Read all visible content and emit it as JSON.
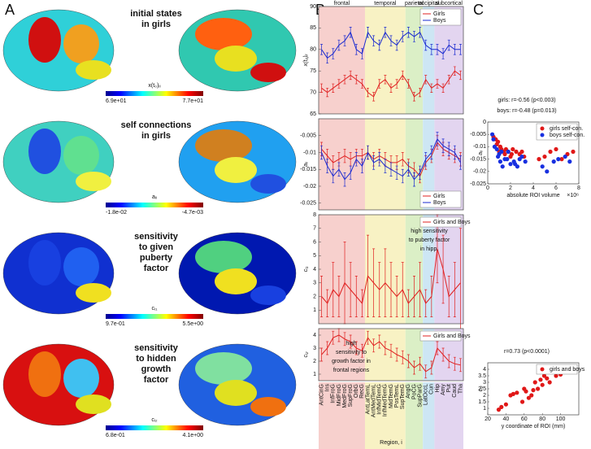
{
  "panel_labels": [
    "A",
    "B",
    "C"
  ],
  "brain_panels": [
    {
      "lines": [
        "initial states",
        "in girls"
      ],
      "colorbar_label": "x(t₀)ᵢᵢ",
      "colorbar_min": "6.9e+01",
      "colorbar_max": "7.7e+01"
    },
    {
      "lines": [
        "self connections",
        "in girls"
      ],
      "colorbar_label": "aᵢᵢ",
      "colorbar_min": "-1.8e-02",
      "colorbar_max": "-4.7e-03"
    },
    {
      "lines": [
        "sensitivity",
        "to given",
        "puberty",
        "factor"
      ],
      "colorbar_label": "cᵢ₁",
      "colorbar_min": "9.7e-01",
      "colorbar_max": "5.5e+00"
    },
    {
      "lines": [
        "sensitivity",
        "to hidden",
        "growth",
        "factor"
      ],
      "colorbar_label": "cᵢ₂",
      "colorbar_min": "6.8e-01",
      "colorbar_max": "4.1e+00"
    }
  ],
  "region_axis": {
    "label": "Region, i",
    "categories": [
      "AntCinG",
      "Ins",
      "InfFroG",
      "MidFroG",
      "MedFroG",
      "SupFroG",
      "OrbG",
      "RecG",
      "AntLatTemL",
      "AntMedTemL",
      "InfMidTemG",
      "InfMedTemG",
      "MidTemG",
      "PosTemL",
      "SupTemG",
      "AngG",
      "PoCG",
      "SupParG",
      "LatOccL",
      "Cun",
      "Hip",
      "Amy",
      "Put",
      "Caud",
      "Tha"
    ],
    "groups": [
      {
        "name": "frontal",
        "count": 8,
        "color": "#f7d0cd"
      },
      {
        "name": "temporal",
        "count": 7,
        "color": "#f8f2c4"
      },
      {
        "name": "parietal",
        "count": 3,
        "color": "#dbefc6"
      },
      {
        "name": "occipital",
        "count": 2,
        "color": "#cde6f4"
      },
      {
        "name": "subcortical",
        "count": 5,
        "color": "#e3d5f0"
      }
    ]
  },
  "chart_data": [
    {
      "type": "line",
      "ylabel": "x(t₀)ᵢᵢ",
      "ylim": [
        65,
        90
      ],
      "yticks": [
        65,
        70,
        75,
        80,
        85,
        90
      ],
      "legend": "upper right",
      "series": [
        {
          "name": "Girls",
          "color": "#e02020",
          "values": [
            71,
            70,
            71,
            72,
            73,
            74,
            73,
            72,
            70,
            69,
            72,
            73,
            71,
            72,
            74,
            72,
            69,
            70,
            73,
            71,
            72,
            71,
            73,
            75,
            74
          ],
          "errors": [
            1,
            1,
            1,
            1,
            1,
            1,
            1,
            1,
            1,
            1,
            1,
            1,
            1,
            1,
            1,
            1,
            1,
            1,
            1,
            1,
            1,
            1,
            1,
            1,
            1
          ]
        },
        {
          "name": "Boys",
          "color": "#1a2ad0",
          "values": [
            80,
            78,
            79,
            81,
            82,
            84,
            80,
            79,
            84,
            82,
            81,
            84,
            82,
            81,
            83,
            84,
            83,
            84,
            81,
            80,
            80,
            79,
            81,
            80,
            80
          ],
          "errors": [
            1.2,
            1.2,
            1.2,
            1.2,
            1.2,
            1.2,
            1.2,
            1.2,
            1.2,
            1.2,
            1.2,
            1.2,
            1.2,
            1.2,
            1.2,
            1.2,
            1.2,
            1.2,
            1.2,
            1.2,
            1.2,
            1.2,
            1.2,
            1.2,
            1.2
          ]
        }
      ]
    },
    {
      "type": "line",
      "ylabel": "aᵢᵢ",
      "ylim": [
        -0.027,
        0
      ],
      "yticks": [
        -0.025,
        -0.02,
        -0.015,
        -0.01,
        -0.005
      ],
      "legend": "lower right",
      "series": [
        {
          "name": "Girls",
          "color": "#e02020",
          "values": [
            -0.009,
            -0.011,
            -0.013,
            -0.012,
            -0.011,
            -0.012,
            -0.011,
            -0.011,
            -0.01,
            -0.012,
            -0.011,
            -0.012,
            -0.013,
            -0.013,
            -0.012,
            -0.014,
            -0.015,
            -0.017,
            -0.013,
            -0.011,
            -0.007,
            -0.009,
            -0.01,
            -0.011,
            -0.012
          ],
          "errors": [
            0.002,
            0.002,
            0.002,
            0.002,
            0.002,
            0.002,
            0.002,
            0.002,
            0.002,
            0.002,
            0.002,
            0.002,
            0.002,
            0.002,
            0.002,
            0.002,
            0.002,
            0.002,
            0.002,
            0.002,
            0.002,
            0.002,
            0.002,
            0.002,
            0.002
          ]
        },
        {
          "name": "Boys",
          "color": "#1a2ad0",
          "values": [
            -0.01,
            -0.014,
            -0.017,
            -0.015,
            -0.018,
            -0.016,
            -0.012,
            -0.014,
            -0.01,
            -0.013,
            -0.012,
            -0.014,
            -0.015,
            -0.016,
            -0.017,
            -0.015,
            -0.018,
            -0.016,
            -0.012,
            -0.01,
            -0.006,
            -0.008,
            -0.009,
            -0.01,
            -0.013
          ],
          "errors": [
            0.002,
            0.002,
            0.002,
            0.002,
            0.002,
            0.002,
            0.002,
            0.002,
            0.002,
            0.002,
            0.002,
            0.002,
            0.002,
            0.002,
            0.002,
            0.002,
            0.002,
            0.002,
            0.002,
            0.002,
            0.002,
            0.002,
            0.002,
            0.002,
            0.002
          ]
        }
      ]
    },
    {
      "type": "line",
      "ylabel": "cᵢ₁",
      "ylim": [
        0,
        8
      ],
      "yticks": [
        1,
        2,
        3,
        4,
        5,
        6,
        7,
        8
      ],
      "legend": "upper right",
      "annotation": [
        "high sensitivity",
        "to puberty factor",
        "in hipp."
      ],
      "series": [
        {
          "name": "Girls and Boys",
          "color": "#e02020",
          "values": [
            2,
            1.5,
            2.5,
            2,
            3,
            2.5,
            2,
            1.5,
            3.5,
            3,
            2.5,
            3,
            2.5,
            2,
            2.5,
            1.5,
            2,
            2.5,
            1.5,
            2,
            5.5,
            4,
            2,
            2.5,
            3
          ],
          "errors": [
            1.5,
            1,
            2,
            1.5,
            3,
            2,
            1.5,
            1,
            3,
            2.5,
            2,
            2.5,
            2,
            1.5,
            2,
            1,
            1.5,
            2,
            1,
            1.5,
            2.5,
            2.5,
            1.5,
            2,
            4
          ]
        }
      ]
    },
    {
      "type": "line",
      "ylabel": "cᵢ₂",
      "ylim": [
        0.5,
        4.5
      ],
      "yticks": [
        1,
        2,
        3,
        4
      ],
      "legend": "upper right",
      "annotation": [
        "high",
        "sensitivity to",
        "growth factor in",
        "frontal regions"
      ],
      "series": [
        {
          "name": "Girls and Boys",
          "color": "#e02020",
          "values": [
            2.5,
            3,
            3.8,
            4,
            3.7,
            3.5,
            3,
            2.8,
            3.8,
            3.2,
            3.5,
            3,
            2.8,
            2.5,
            2.3,
            2,
            1.5,
            1.8,
            1.2,
            1.5,
            3,
            2.5,
            2,
            1.8,
            1.7
          ],
          "errors": [
            0.5,
            0.5,
            0.5,
            0.5,
            0.5,
            0.5,
            0.5,
            0.5,
            0.5,
            0.5,
            0.5,
            0.5,
            0.5,
            0.5,
            0.5,
            0.5,
            0.5,
            0.5,
            0.5,
            0.5,
            0.5,
            0.5,
            0.5,
            0.5,
            0.5
          ]
        }
      ]
    },
    {
      "type": "scatter",
      "title": [
        "girls: r=-0.56 (p<0.003)",
        "boys: r=-0.48 (p=0.013)"
      ],
      "xlabel": "absolute ROI volume",
      "x_multiplier": "×10⁶",
      "ylabel": "aᵢᵢ",
      "xlim": [
        0,
        8
      ],
      "xticks": [
        0,
        2,
        4,
        6,
        8
      ],
      "ylim": [
        -0.025,
        0
      ],
      "yticks": [
        -0.025,
        -0.02,
        -0.015,
        -0.01,
        -0.005,
        0
      ],
      "legend": "upper right",
      "series": [
        {
          "name": "girls self-con.",
          "color": "#e01818",
          "x": [
            0.5,
            0.8,
            1,
            1.2,
            1.5,
            1.8,
            2,
            2.2,
            2.5,
            2.8,
            3,
            3.2,
            1.1,
            0.9,
            1.4,
            2.1,
            4.5,
            5,
            5.5,
            6,
            6.5,
            7,
            7.5,
            1.6,
            0.7
          ],
          "values": [
            -0.006,
            -0.009,
            -0.012,
            -0.011,
            -0.013,
            -0.012,
            -0.014,
            -0.011,
            -0.012,
            -0.013,
            -0.012,
            -0.014,
            -0.01,
            -0.008,
            -0.012,
            -0.013,
            -0.015,
            -0.014,
            -0.012,
            -0.011,
            -0.015,
            -0.013,
            -0.012,
            -0.011,
            -0.007
          ]
        },
        {
          "name": "boys self-con.",
          "color": "#1830e0",
          "x": [
            0.4,
            0.6,
            0.9,
            1.1,
            1.3,
            1.7,
            2,
            2.3,
            2.6,
            3,
            3.3,
            1,
            0.8,
            1.5,
            2.4,
            4.8,
            5.2,
            5.8,
            6.2,
            6.8,
            7.2,
            1.8,
            0.5,
            1.2,
            2.8
          ],
          "values": [
            -0.005,
            -0.01,
            -0.014,
            -0.016,
            -0.018,
            -0.015,
            -0.017,
            -0.016,
            -0.018,
            -0.014,
            -0.016,
            -0.013,
            -0.011,
            -0.015,
            -0.017,
            -0.018,
            -0.02,
            -0.016,
            -0.015,
            -0.014,
            -0.016,
            -0.012,
            -0.007,
            -0.012,
            -0.015
          ]
        }
      ]
    },
    {
      "type": "scatter",
      "title": [
        "r=0.73 (p<0.0001)"
      ],
      "xlabel": "y coordinate of ROI (mm)",
      "ylabel": "cᵢ₂",
      "xlim": [
        20,
        120
      ],
      "xticks": [
        20,
        40,
        60,
        80,
        100
      ],
      "ylim": [
        0.5,
        4.5
      ],
      "yticks": [
        1,
        1.5,
        2,
        2.5,
        3,
        3.5,
        4
      ],
      "legend": "upper right",
      "series": [
        {
          "name": "girls and boys",
          "color": "#e01818",
          "x": [
            32,
            35,
            40,
            45,
            48,
            52,
            58,
            60,
            62,
            65,
            68,
            70,
            72,
            75,
            78,
            80,
            82,
            85,
            88,
            90,
            95,
            98,
            100,
            105,
            108
          ],
          "values": [
            0.9,
            1.1,
            1.3,
            2,
            2.1,
            2.2,
            1.5,
            2.5,
            2.3,
            1.8,
            2,
            2.4,
            3,
            2.5,
            3.2,
            2.8,
            3.5,
            3.3,
            3,
            3.8,
            3.5,
            4,
            3.6,
            4.1,
            3.9
          ]
        }
      ]
    }
  ]
}
